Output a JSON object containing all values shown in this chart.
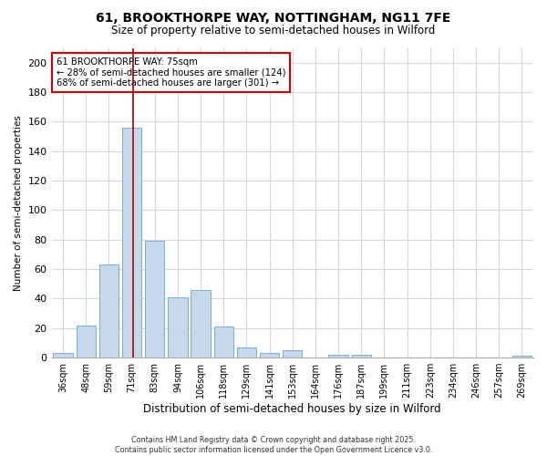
{
  "title1": "61, BROOKTHORPE WAY, NOTTINGHAM, NG11 7FE",
  "title2": "Size of property relative to semi-detached houses in Wilford",
  "xlabel": "Distribution of semi-detached houses by size in Wilford",
  "ylabel": "Number of semi-detached properties",
  "categories": [
    "36sqm",
    "48sqm",
    "59sqm",
    "71sqm",
    "83sqm",
    "94sqm",
    "106sqm",
    "118sqm",
    "129sqm",
    "141sqm",
    "153sqm",
    "164sqm",
    "176sqm",
    "187sqm",
    "199sqm",
    "211sqm",
    "223sqm",
    "234sqm",
    "246sqm",
    "257sqm",
    "269sqm"
  ],
  "values": [
    3,
    22,
    63,
    156,
    79,
    41,
    46,
    21,
    7,
    3,
    5,
    0,
    2,
    2,
    0,
    0,
    0,
    0,
    0,
    0,
    1
  ],
  "bar_color": "#c5d8ec",
  "bar_edge_color": "#7bafd4",
  "vline_x_index": 3,
  "vline_color": "#aa0000",
  "annotation_title": "61 BROOKTHORPE WAY: 75sqm",
  "annotation_line1": "← 28% of semi-detached houses are smaller (124)",
  "annotation_line2": "68% of semi-detached houses are larger (301) →",
  "annotation_box_color": "#cc0000",
  "ylim": [
    0,
    210
  ],
  "yticks": [
    0,
    20,
    40,
    60,
    80,
    100,
    120,
    140,
    160,
    180,
    200
  ],
  "footnote1": "Contains HM Land Registry data © Crown copyright and database right 2025.",
  "footnote2": "Contains public sector information licensed under the Open Government Licence v3.0.",
  "bg_color": "#ffffff",
  "plot_bg_color": "#ffffff",
  "grid_color": "#d0d8e0"
}
